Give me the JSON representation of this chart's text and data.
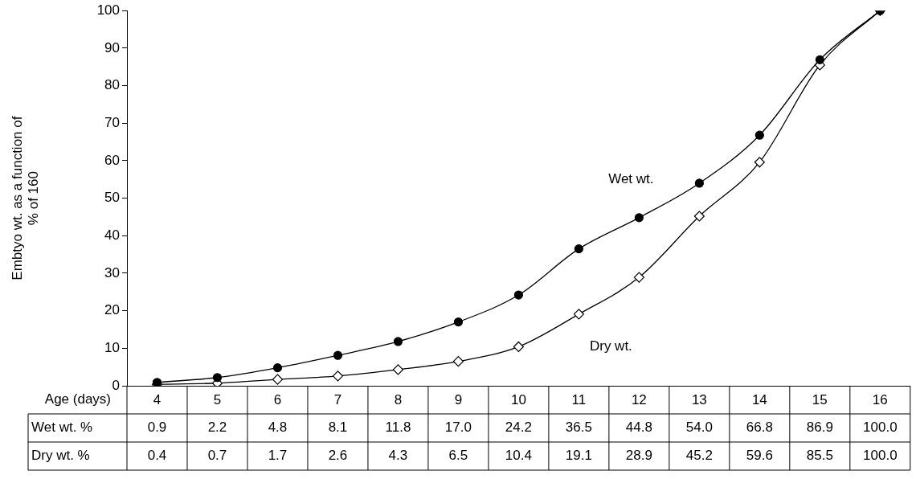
{
  "chart_data": {
    "type": "line",
    "xlabel": "Age (days)",
    "ylabel": "Embtyo wt. as a function of\n% of 160",
    "categories": [
      "4",
      "5",
      "6",
      "7",
      "8",
      "9",
      "10",
      "11",
      "12",
      "13",
      "14",
      "15",
      "16"
    ],
    "series": [
      {
        "name": "Wet wt.",
        "color": "#000000",
        "marker": "circle",
        "values": [
          0.9,
          2.2,
          4.8,
          8.1,
          11.8,
          17.0,
          24.2,
          36.5,
          44.8,
          54.0,
          66.8,
          86.9,
          100.0
        ],
        "value_labels": [
          "0.9",
          "2.2",
          "4.8",
          "8.1",
          "11.8",
          "17.0",
          "24.2",
          "36.5",
          "44.8",
          "54.0",
          "66.8",
          "86.9",
          "100.0"
        ]
      },
      {
        "name": "Dry wt.",
        "color": "#000000",
        "marker": "diamond",
        "values": [
          0.4,
          0.7,
          1.7,
          2.6,
          4.3,
          6.5,
          10.4,
          19.1,
          28.9,
          45.2,
          59.6,
          85.5,
          100.0
        ],
        "value_labels": [
          "0.4",
          "0.7",
          "1.7",
          "2.6",
          "4.3",
          "6.5",
          "10.4",
          "19.1",
          "28.9",
          "45.2",
          "59.6",
          "85.5",
          "100.0"
        ]
      }
    ],
    "annotations": [
      "Wet wt. %",
      "Dry wt. %"
    ],
    "ylim": [
      0,
      100
    ],
    "yticks": [
      0,
      10,
      20,
      30,
      40,
      50,
      60,
      70,
      80,
      90,
      100
    ],
    "grid": false,
    "legend": false,
    "line_style": "solid"
  }
}
